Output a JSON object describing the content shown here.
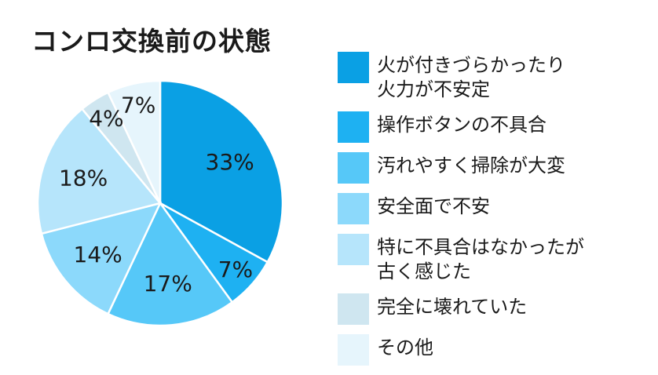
{
  "title": "コンロ交換前の状態",
  "chart_data": {
    "type": "pie",
    "title": "コンロ交換前の状態",
    "legend_position": "right",
    "slices": [
      {
        "label": "火が付きづらかったり\n火力が不安定",
        "value": 33,
        "value_label": "33%",
        "color": "#0aa0e4"
      },
      {
        "label": "操作ボタンの不具合",
        "value": 7,
        "value_label": "7%",
        "color": "#1eb1f2"
      },
      {
        "label": "汚れやすく掃除が大変",
        "value": 17,
        "value_label": "17%",
        "color": "#56c8f8"
      },
      {
        "label": "安全面で不安",
        "value": 14,
        "value_label": "14%",
        "color": "#8cd9fb"
      },
      {
        "label": "特に不具合はなかったが\n古く感じた",
        "value": 18,
        "value_label": "18%",
        "color": "#b6e5fb"
      },
      {
        "label": "完全に壊れていた",
        "value": 4,
        "value_label": "4%",
        "color": "#cfe6f0"
      },
      {
        "label": "その他",
        "value": 7,
        "value_label": "7%",
        "color": "#e6f5fc"
      }
    ]
  }
}
